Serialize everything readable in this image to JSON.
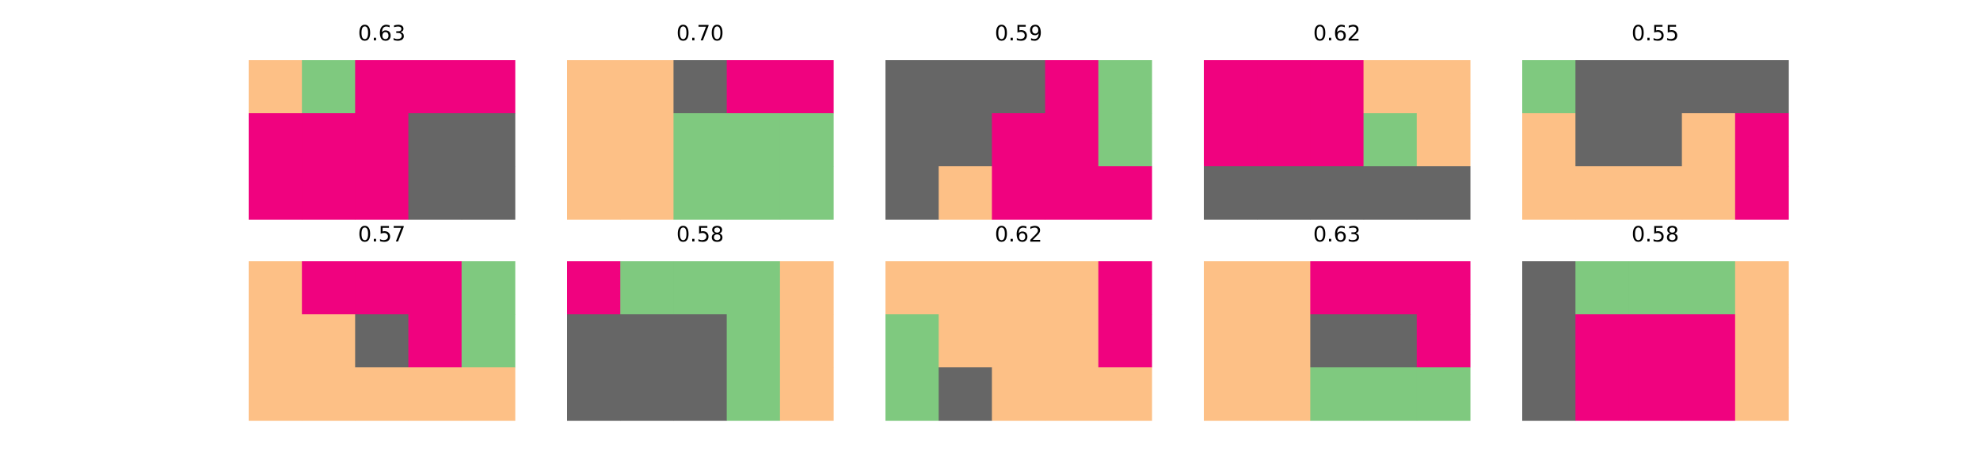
{
  "palette": {
    "0": "#fdc086",
    "1": "#7fc97f",
    "2": "#f0027f",
    "3": "#666666"
  },
  "chart_data": [
    {
      "type": "heatmap",
      "title": "0.63",
      "grid": [
        [
          0,
          1,
          2,
          2,
          2
        ],
        [
          2,
          2,
          2,
          3,
          3
        ],
        [
          2,
          2,
          2,
          3,
          3
        ]
      ]
    },
    {
      "type": "heatmap",
      "title": "0.70",
      "grid": [
        [
          0,
          0,
          3,
          2,
          2
        ],
        [
          0,
          0,
          1,
          1,
          1
        ],
        [
          0,
          0,
          1,
          1,
          1
        ]
      ]
    },
    {
      "type": "heatmap",
      "title": "0.59",
      "grid": [
        [
          3,
          3,
          3,
          2,
          1
        ],
        [
          3,
          3,
          2,
          2,
          1
        ],
        [
          3,
          0,
          2,
          2,
          2
        ]
      ]
    },
    {
      "type": "heatmap",
      "title": "0.62",
      "grid": [
        [
          2,
          2,
          2,
          0,
          0
        ],
        [
          2,
          2,
          2,
          1,
          0
        ],
        [
          3,
          3,
          3,
          3,
          3
        ]
      ]
    },
    {
      "type": "heatmap",
      "title": "0.55",
      "grid": [
        [
          1,
          3,
          3,
          3,
          3
        ],
        [
          0,
          3,
          3,
          0,
          2
        ],
        [
          0,
          0,
          0,
          0,
          2
        ]
      ]
    },
    {
      "type": "heatmap",
      "title": "0.57",
      "grid": [
        [
          0,
          2,
          2,
          2,
          1
        ],
        [
          0,
          0,
          3,
          2,
          1
        ],
        [
          0,
          0,
          0,
          0,
          0
        ]
      ]
    },
    {
      "type": "heatmap",
      "title": "0.58",
      "grid": [
        [
          2,
          1,
          1,
          1,
          0
        ],
        [
          3,
          3,
          3,
          1,
          0
        ],
        [
          3,
          3,
          3,
          1,
          0
        ]
      ]
    },
    {
      "type": "heatmap",
      "title": "0.62",
      "grid": [
        [
          0,
          0,
          0,
          0,
          2
        ],
        [
          1,
          0,
          0,
          0,
          2
        ],
        [
          1,
          3,
          0,
          0,
          0
        ]
      ]
    },
    {
      "type": "heatmap",
      "title": "0.63",
      "grid": [
        [
          0,
          0,
          2,
          2,
          2
        ],
        [
          0,
          0,
          3,
          3,
          2
        ],
        [
          0,
          0,
          1,
          1,
          1
        ]
      ]
    },
    {
      "type": "heatmap",
      "title": "0.58",
      "grid": [
        [
          3,
          1,
          1,
          1,
          0
        ],
        [
          3,
          2,
          2,
          2,
          0
        ],
        [
          3,
          2,
          2,
          2,
          0
        ]
      ]
    }
  ]
}
